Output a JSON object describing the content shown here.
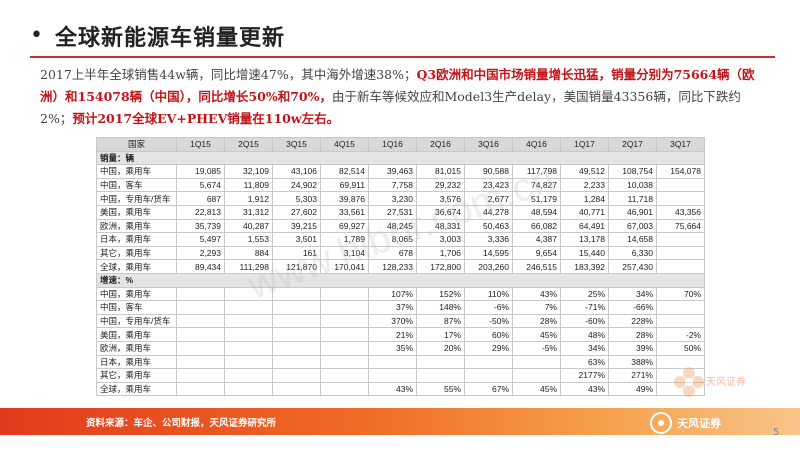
{
  "header": {
    "title": "全球新能源车销量更新"
  },
  "paragraph": {
    "part1": "2017上半年全球销售44w辆，同比增速47%，其中海外增速38%；",
    "part2": "Q3欧洲和中国市场销量增长迅猛，销量分别为75664辆（欧洲）和154078辆（中国），同比增长50%和70%，",
    "part3": "由于新车等候效应和Model3生产delay，美国销量43356辆，同比下跌约2%；",
    "part4": "预计2017全球EV+PHEV销量在110w左右。"
  },
  "table": {
    "headers": [
      "国家",
      "1Q15",
      "2Q15",
      "3Q15",
      "4Q15",
      "1Q16",
      "2Q16",
      "3Q16",
      "4Q16",
      "1Q17",
      "2Q17",
      "3Q17"
    ],
    "section1": "销量：辆",
    "sales": [
      [
        "中国，乘用车",
        "19,085",
        "32,109",
        "43,106",
        "82,514",
        "39,463",
        "81,015",
        "90,588",
        "117,798",
        "49,512",
        "108,754",
        "154,078"
      ],
      [
        "中国，客车",
        "5,674",
        "11,809",
        "24,902",
        "69,911",
        "7,758",
        "29,232",
        "23,423",
        "74,827",
        "2,233",
        "10,038",
        ""
      ],
      [
        "中国，专用车/货车",
        "687",
        "1,912",
        "5,303",
        "39,876",
        "3,230",
        "3,576",
        "2,677",
        "51,179",
        "1,284",
        "11,718",
        ""
      ],
      [
        "美国，乘用车",
        "22,813",
        "31,312",
        "27,602",
        "33,561",
        "27,531",
        "36,674",
        "44,278",
        "48,594",
        "40,771",
        "46,901",
        "43,356"
      ],
      [
        "欧洲，乘用车",
        "35,739",
        "40,287",
        "39,215",
        "69,927",
        "48,245",
        "48,331",
        "50,463",
        "66,082",
        "64,491",
        "67,003",
        "75,664"
      ],
      [
        "日本，乘用车",
        "5,497",
        "1,553",
        "3,501",
        "1,789",
        "8,065",
        "3,003",
        "3,336",
        "4,387",
        "13,178",
        "14,658",
        ""
      ],
      [
        "其它，乘用车",
        "2,293",
        "884",
        "161",
        "3,104",
        "678",
        "1,706",
        "14,595",
        "9,654",
        "15,440",
        "6,330",
        ""
      ],
      [
        "全球，乘用车",
        "89,434",
        "111,298",
        "121,870",
        "170,041",
        "128,233",
        "172,800",
        "203,260",
        "246,515",
        "183,392",
        "257,430",
        ""
      ]
    ],
    "section2": "增速：%",
    "growth": [
      [
        "中国，乘用车",
        "",
        "",
        "",
        "",
        "107%",
        "152%",
        "110%",
        "43%",
        "25%",
        "34%",
        "70%"
      ],
      [
        "中国，客车",
        "",
        "",
        "",
        "",
        "37%",
        "148%",
        "-6%",
        "7%",
        "-71%",
        "-66%",
        ""
      ],
      [
        "中国，专用车/货车",
        "",
        "",
        "",
        "",
        "370%",
        "87%",
        "-50%",
        "28%",
        "-60%",
        "228%",
        ""
      ],
      [
        "美国，乘用车",
        "",
        "",
        "",
        "",
        "21%",
        "17%",
        "60%",
        "45%",
        "48%",
        "28%",
        "-2%"
      ],
      [
        "欧洲，乘用车",
        "",
        "",
        "",
        "",
        "35%",
        "20%",
        "29%",
        "-5%",
        "34%",
        "39%",
        "50%"
      ],
      [
        "日本，乘用车",
        "",
        "",
        "",
        "",
        "",
        "",
        "",
        "",
        "63%",
        "388%",
        ""
      ],
      [
        "其它，乘用车",
        "",
        "",
        "",
        "",
        "",
        "",
        "",
        "",
        "2177%",
        "271%",
        ""
      ],
      [
        "全球，乘用车",
        "",
        "",
        "",
        "",
        "43%",
        "55%",
        "67%",
        "45%",
        "43%",
        "49%",
        ""
      ]
    ]
  },
  "footer": {
    "source": "资料来源：车企、公司财报，天风证券研究所",
    "logo_text": "天风证券",
    "page_number": "5"
  },
  "colors": {
    "accent": "#d62b2b",
    "band_start": "#e23a1c",
    "band_end": "#f7c58a"
  }
}
